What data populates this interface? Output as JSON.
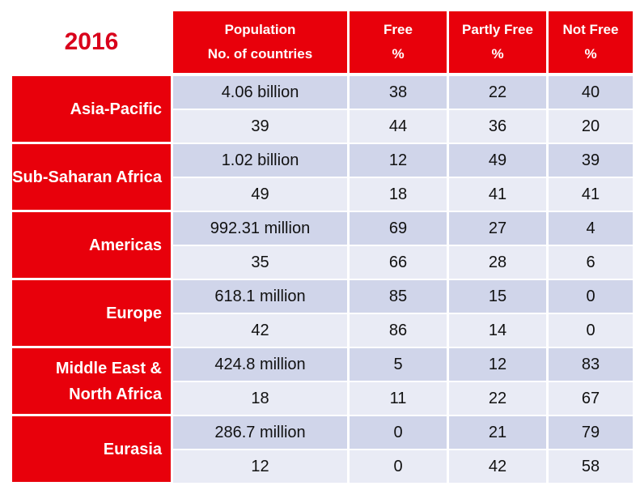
{
  "chart_data": {
    "type": "table",
    "title": "2016",
    "columns": [
      {
        "line1": "Population",
        "line2": "No. of countries"
      },
      {
        "line1": "Free",
        "line2": "%"
      },
      {
        "line1": "Partly Free",
        "line2": "%"
      },
      {
        "line1": "Not Free",
        "line2": "%"
      }
    ],
    "regions": [
      {
        "name": "Asia-Pacific",
        "population": "4.06 billion",
        "pop_pct": [
          "38",
          "22",
          "40"
        ],
        "countries": "39",
        "country_pct": [
          "44",
          "36",
          "20"
        ]
      },
      {
        "name": "Sub-Saharan Africa",
        "population": "1.02 billion",
        "pop_pct": [
          "12",
          "49",
          "39"
        ],
        "countries": "49",
        "country_pct": [
          "18",
          "41",
          "41"
        ]
      },
      {
        "name": "Americas",
        "population": "992.31 million",
        "pop_pct": [
          "69",
          "27",
          "4"
        ],
        "countries": "35",
        "country_pct": [
          "66",
          "28",
          "6"
        ]
      },
      {
        "name": "Europe",
        "population": "618.1 million",
        "pop_pct": [
          "85",
          "15",
          "0"
        ],
        "countries": "42",
        "country_pct": [
          "86",
          "14",
          "0"
        ]
      },
      {
        "name": "Middle East & North Africa",
        "population": "424.8 million",
        "pop_pct": [
          "5",
          "12",
          "83"
        ],
        "countries": "18",
        "country_pct": [
          "11",
          "22",
          "67"
        ]
      },
      {
        "name": "Eurasia",
        "population": "286.7 million",
        "pop_pct": [
          "0",
          "21",
          "79"
        ],
        "countries": "12",
        "country_pct": [
          "0",
          "42",
          "58"
        ]
      }
    ]
  }
}
